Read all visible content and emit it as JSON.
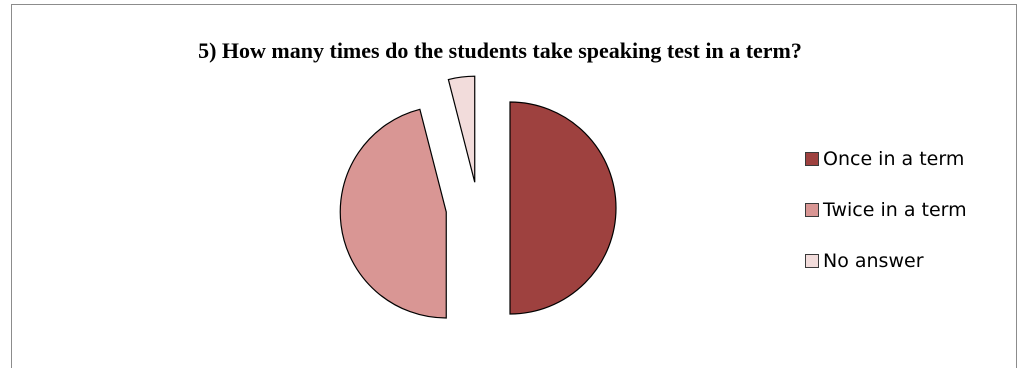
{
  "chart_data": {
    "type": "pie",
    "title": "5) How many times do the students take speaking test in a term?",
    "categories": [
      "Once in a term",
      "Twice in a term",
      "No answer"
    ],
    "values": [
      50,
      46,
      4
    ],
    "unit": "%",
    "colors": [
      "#9e413f",
      "#d99694",
      "#f2dcdb"
    ],
    "exploded": true,
    "legend_position": "right"
  }
}
